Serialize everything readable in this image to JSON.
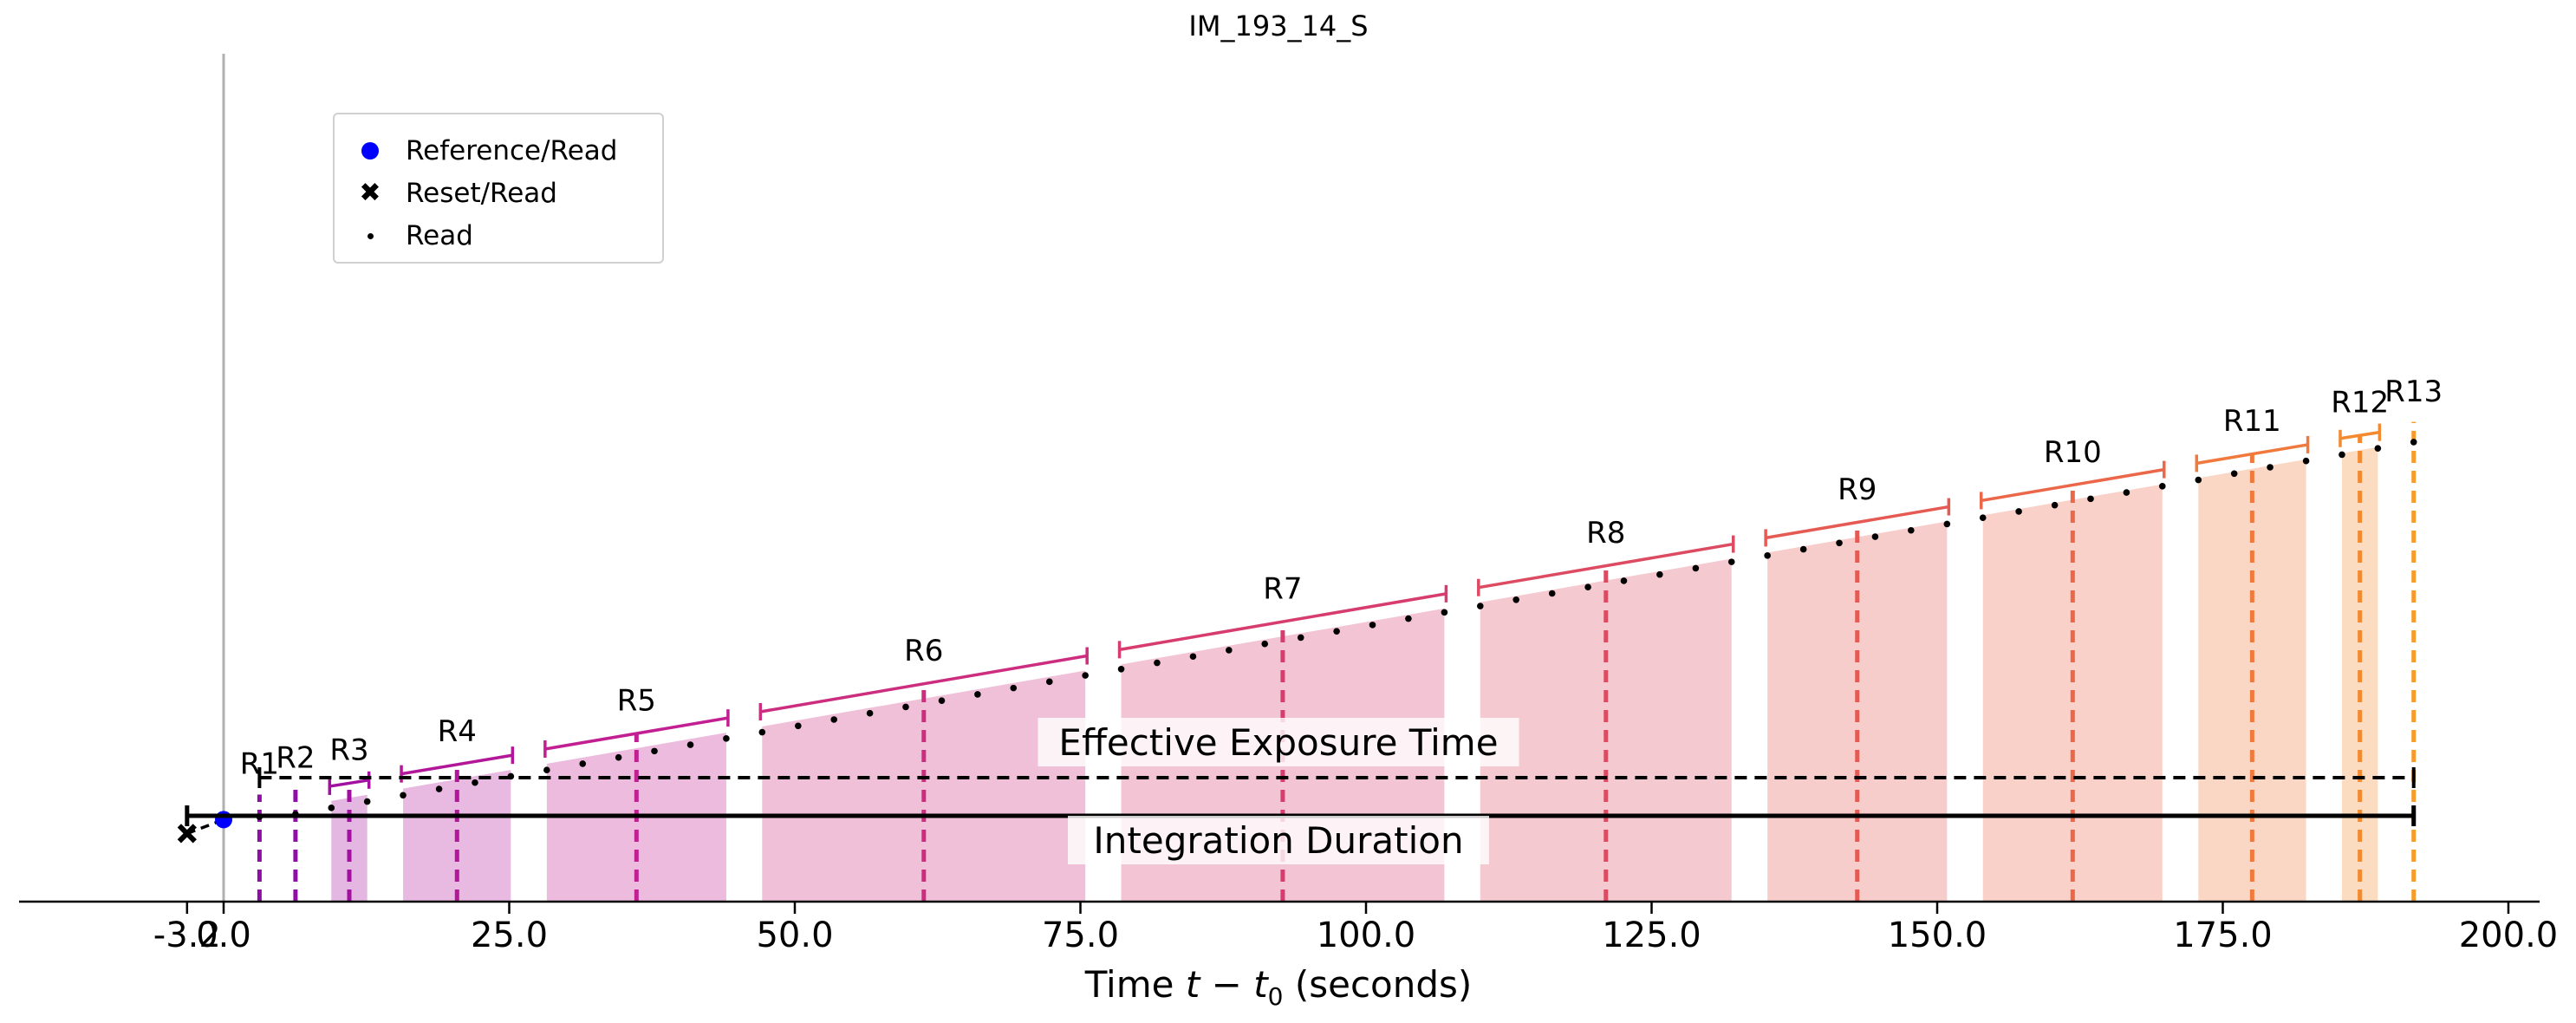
{
  "chart_data": {
    "type": "timeline",
    "title": "IM_193_14_S",
    "xlabel": "Time $t - t_0$ (seconds)",
    "xlabel_parts": [
      "Time ",
      "t",
      " − ",
      "t",
      "0",
      " (seconds)"
    ],
    "xlim": [
      -12.5,
      203.5
    ],
    "ylim": [
      0.0,
      1.0
    ],
    "xticks": [
      -3.2,
      0.0,
      25.0,
      50.0,
      75.0,
      100.0,
      125.0,
      150.0,
      175.0,
      200.0
    ],
    "xtick_labels": [
      "-3.2",
      "0.0",
      "25.0",
      "50.0",
      "75.0",
      "100.0",
      "125.0",
      "150.0",
      "175.0",
      "200.0"
    ],
    "reset_read": {
      "x": -3.2,
      "y": 0.162
    },
    "reference_read": {
      "x": 0.0,
      "y": 0.195
    },
    "reads": [
      {
        "x": 3.14,
        "y": 0.202
      },
      {
        "x": 6.29,
        "y": 0.208
      },
      {
        "x": 9.43,
        "y": 0.223
      },
      {
        "x": 12.57,
        "y": 0.238
      },
      {
        "x": 15.71,
        "y": 0.253
      },
      {
        "x": 18.86,
        "y": 0.268
      },
      {
        "x": 22.0,
        "y": 0.283
      },
      {
        "x": 25.14,
        "y": 0.298
      },
      {
        "x": 28.29,
        "y": 0.313
      },
      {
        "x": 31.43,
        "y": 0.328
      },
      {
        "x": 34.57,
        "y": 0.343
      },
      {
        "x": 37.71,
        "y": 0.358
      },
      {
        "x": 40.86,
        "y": 0.373
      },
      {
        "x": 44.0,
        "y": 0.388
      },
      {
        "x": 47.14,
        "y": 0.403
      },
      {
        "x": 50.29,
        "y": 0.418
      },
      {
        "x": 53.43,
        "y": 0.433
      },
      {
        "x": 56.57,
        "y": 0.448
      },
      {
        "x": 59.71,
        "y": 0.463
      },
      {
        "x": 62.86,
        "y": 0.478
      },
      {
        "x": 66.0,
        "y": 0.493
      },
      {
        "x": 69.14,
        "y": 0.508
      },
      {
        "x": 72.29,
        "y": 0.523
      },
      {
        "x": 75.43,
        "y": 0.538
      },
      {
        "x": 78.57,
        "y": 0.553
      },
      {
        "x": 81.71,
        "y": 0.568
      },
      {
        "x": 84.86,
        "y": 0.583
      },
      {
        "x": 88.0,
        "y": 0.598
      },
      {
        "x": 91.14,
        "y": 0.613
      },
      {
        "x": 94.29,
        "y": 0.628
      },
      {
        "x": 97.43,
        "y": 0.643
      },
      {
        "x": 100.57,
        "y": 0.658
      },
      {
        "x": 103.71,
        "y": 0.673
      },
      {
        "x": 106.86,
        "y": 0.688
      },
      {
        "x": 110.0,
        "y": 0.703
      },
      {
        "x": 113.14,
        "y": 0.718
      },
      {
        "x": 116.29,
        "y": 0.733
      },
      {
        "x": 119.43,
        "y": 0.748
      },
      {
        "x": 122.57,
        "y": 0.763
      },
      {
        "x": 125.71,
        "y": 0.778
      },
      {
        "x": 128.86,
        "y": 0.793
      },
      {
        "x": 132.0,
        "y": 0.808
      },
      {
        "x": 135.14,
        "y": 0.823
      },
      {
        "x": 138.29,
        "y": 0.838
      },
      {
        "x": 141.43,
        "y": 0.853
      },
      {
        "x": 144.57,
        "y": 0.868
      },
      {
        "x": 147.71,
        "y": 0.883
      },
      {
        "x": 150.86,
        "y": 0.898
      },
      {
        "x": 154.0,
        "y": 0.913
      },
      {
        "x": 157.14,
        "y": 0.928
      },
      {
        "x": 160.29,
        "y": 0.943
      },
      {
        "x": 163.43,
        "y": 0.958
      },
      {
        "x": 166.57,
        "y": 0.973
      },
      {
        "x": 169.71,
        "y": 0.988
      },
      {
        "x": 172.86,
        "y": 1.003
      },
      {
        "x": 176.0,
        "y": 1.018
      },
      {
        "x": 179.14,
        "y": 1.033
      },
      {
        "x": 182.29,
        "y": 1.048
      },
      {
        "x": 185.43,
        "y": 1.063
      },
      {
        "x": 188.57,
        "y": 1.078
      },
      {
        "x": 191.71,
        "y": 1.093
      }
    ],
    "resultants": [
      {
        "name": "R1",
        "start": 3.14,
        "end": 3.14,
        "mean": 3.14,
        "color": "#8d0ea3"
      },
      {
        "name": "R2",
        "start": 6.29,
        "end": 6.29,
        "mean": 6.29,
        "color": "#8e0fa3"
      },
      {
        "name": "R3",
        "start": 9.43,
        "end": 12.57,
        "mean": 11.0,
        "color": "#a2109f"
      },
      {
        "name": "R4",
        "start": 15.71,
        "end": 25.14,
        "mean": 20.43,
        "color": "#b2179a"
      },
      {
        "name": "R5",
        "start": 28.29,
        "end": 44.0,
        "mean": 36.14,
        "color": "#c11f92"
      },
      {
        "name": "R6",
        "start": 47.14,
        "end": 75.43,
        "mean": 61.29,
        "color": "#cc2d7f"
      },
      {
        "name": "R7",
        "start": 78.57,
        "end": 106.86,
        "mean": 92.71,
        "color": "#d73c6e"
      },
      {
        "name": "R8",
        "start": 110.0,
        "end": 132.0,
        "mean": 121.0,
        "color": "#dd4b62"
      },
      {
        "name": "R9",
        "start": 135.14,
        "end": 150.86,
        "mean": 143.0,
        "color": "#e55a53"
      },
      {
        "name": "R10",
        "start": 154.0,
        "end": 169.71,
        "mean": 161.86,
        "color": "#eb6749"
      },
      {
        "name": "R11",
        "start": 172.86,
        "end": 182.29,
        "mean": 177.57,
        "color": "#f07a3d"
      },
      {
        "name": "R12",
        "start": 185.43,
        "end": 188.57,
        "mean": 187.0,
        "color": "#f38a2f"
      },
      {
        "name": "R13",
        "start": 191.71,
        "end": 191.71,
        "mean": 191.71,
        "color": "#f79c28"
      }
    ],
    "effective_exposure_time": {
      "label": "Effective Exposure Time",
      "start": 3.14,
      "end": 191.71
    },
    "integration_duration": {
      "label": "Integration Duration",
      "start": -3.2,
      "end": 191.71
    },
    "legend": {
      "position": "upper-left",
      "entries": [
        "Reference/Read",
        "Reset/Read",
        "Read"
      ]
    }
  },
  "colors": {
    "reference_marker": "#0000ff",
    "reads": "#000000",
    "zero_line": "#b0b0b0"
  }
}
